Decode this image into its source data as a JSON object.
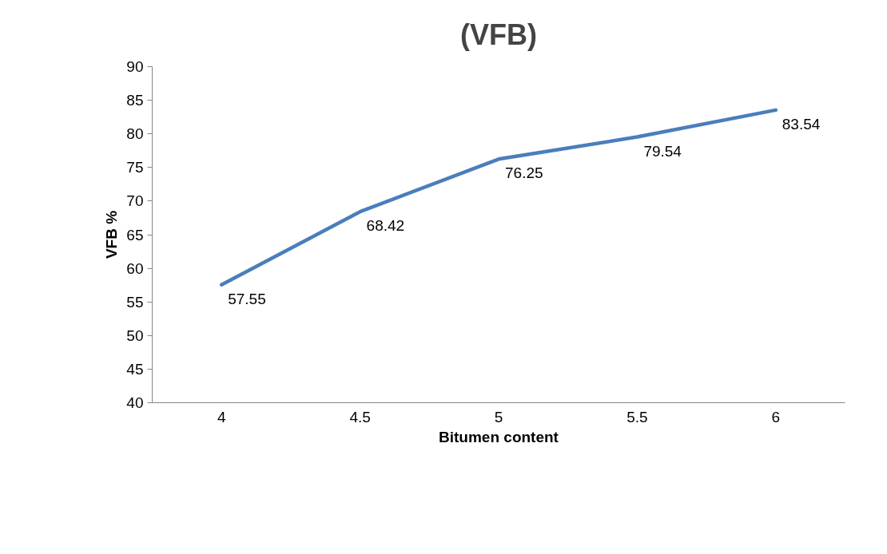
{
  "chart_data": {
    "type": "line",
    "title": "(VFB)",
    "xlabel": "Bitumen content",
    "ylabel": "VFB %",
    "categories": [
      "4",
      "4.5",
      "5",
      "5.5",
      "6"
    ],
    "series": [
      {
        "color": "#4a7ebb",
        "values": [
          57.55,
          68.42,
          76.25,
          79.54,
          83.54
        ]
      }
    ],
    "ylim": [
      40,
      90
    ],
    "yticks": [
      40,
      45,
      50,
      55,
      60,
      65,
      70,
      75,
      80,
      85,
      90
    ],
    "data_labels": true,
    "line_style": "solid"
  }
}
